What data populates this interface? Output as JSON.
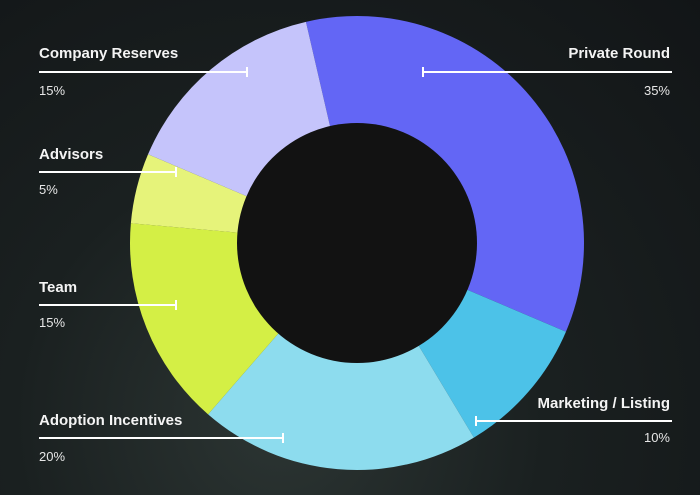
{
  "chart_data": {
    "type": "pie",
    "variant": "donut",
    "title": "",
    "slices": [
      {
        "label": "Private Round",
        "value": 35,
        "value_label": "35%",
        "color": "#6366f5"
      },
      {
        "label": "Marketing / Listing",
        "value": 10,
        "value_label": "10%",
        "color": "#4cc2e8"
      },
      {
        "label": "Adoption Incentives",
        "value": 20,
        "value_label": "20%",
        "color": "#8ddcee"
      },
      {
        "label": "Team",
        "value": 15,
        "value_label": "15%",
        "color": "#d4ef45"
      },
      {
        "label": "Advisors",
        "value": 5,
        "value_label": "5%",
        "color": "#e6f37a"
      },
      {
        "label": "Company Reserves",
        "value": 15,
        "value_label": "15%",
        "color": "#c5c4fb"
      }
    ],
    "center_color": "#121212",
    "background": "#161b1c"
  }
}
